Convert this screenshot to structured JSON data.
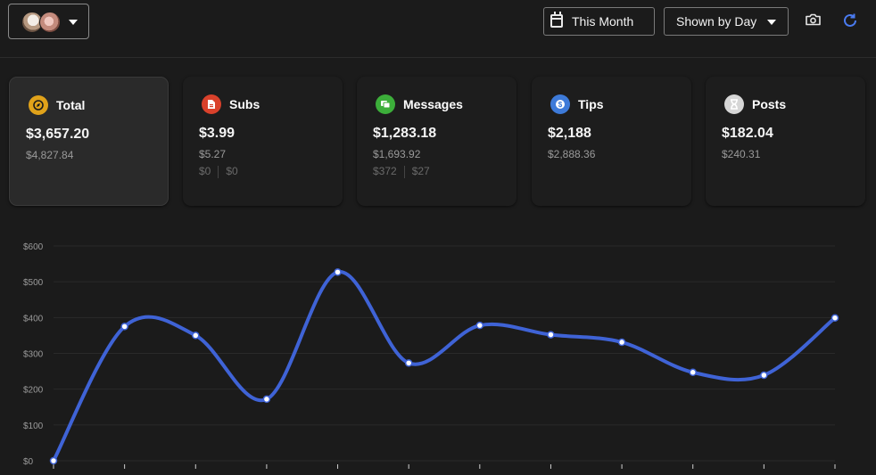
{
  "header": {
    "account_switcher": {
      "avatars": [
        "avatar-1",
        "avatar-2"
      ]
    },
    "date_range": {
      "label": "This Month",
      "icon": "calendar-icon"
    },
    "grouping": {
      "label": "Shown by Day",
      "icon": "chevron-down-icon"
    },
    "actions": {
      "screenshot_icon": "camera-icon",
      "refresh_icon": "refresh-icon"
    }
  },
  "cards": [
    {
      "key": "total",
      "title": "Total",
      "value": "$3,657.20",
      "previous": "$4,827.84",
      "sub": [],
      "icon": "compass-icon",
      "color": "#e0a21a",
      "active": true
    },
    {
      "key": "subs",
      "title": "Subs",
      "value": "$3.99",
      "previous": "$5.27",
      "sub": [
        "$0",
        "$0"
      ],
      "icon": "document-icon",
      "color": "#d9412b",
      "active": false
    },
    {
      "key": "messages",
      "title": "Messages",
      "value": "$1,283.18",
      "previous": "$1,693.92",
      "sub": [
        "$372",
        "$27"
      ],
      "icon": "chat-icon",
      "color": "#3cae3a",
      "active": false
    },
    {
      "key": "tips",
      "title": "Tips",
      "value": "$2,188",
      "previous": "$2,888.36",
      "sub": [],
      "icon": "dollar-icon",
      "color": "#3d7ad9",
      "active": false
    },
    {
      "key": "posts",
      "title": "Posts",
      "value": "$182.04",
      "previous": "$240.31",
      "sub": [],
      "icon": "hourglass-icon",
      "color": "#d6d6d6",
      "active": false
    }
  ],
  "chart_data": {
    "type": "line",
    "title": "",
    "xlabel": "",
    "ylabel": "",
    "y_ticks": [
      "$0",
      "$100",
      "$200",
      "$300",
      "$400",
      "$500",
      "$600"
    ],
    "ylim": [
      0,
      600
    ],
    "grid": true,
    "series": [
      {
        "values": [
          0,
          375,
          350,
          172,
          527,
          273,
          378,
          352,
          331,
          247,
          239,
          399
        ]
      }
    ],
    "line_color": "#3f63d6"
  }
}
